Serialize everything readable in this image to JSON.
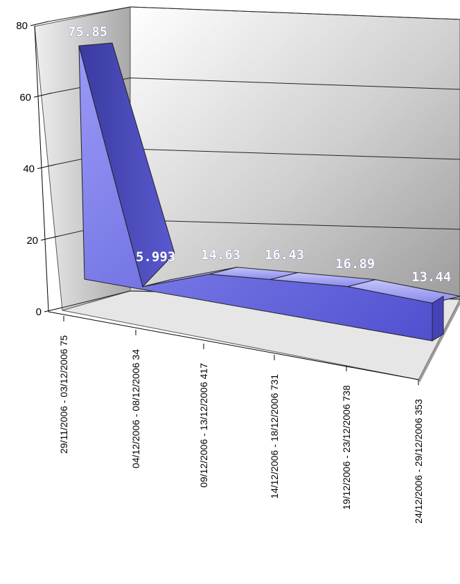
{
  "chart_data": {
    "type": "area",
    "three_d": true,
    "categories": [
      "29/11/2006 - 03/12/2006  75",
      "04/12/2006 - 08/12/2006  34",
      "09/12/2006 - 13/12/2006  417",
      "14/12/2006 - 18/12/2006  731",
      "19/12/2006 - 23/12/2006  738",
      "24/12/2006 - 29/12/2006  353"
    ],
    "values": [
      75.85,
      5.993,
      14.63,
      16.43,
      16.89,
      13.44
    ],
    "data_labels": [
      "75.85",
      "5.993",
      "14.63",
      "16.43",
      "16.89",
      "13.44"
    ],
    "ylim": [
      0,
      80
    ],
    "y_ticks": [
      "0",
      "20",
      "40",
      "60",
      "80"
    ],
    "grid": true,
    "legend": "none",
    "colors": {
      "series": "#7878f0",
      "series_dark": "#3c3ca4",
      "series_top": "#b0b0f8",
      "wall": "#cfcfcf",
      "floor": "#e4e4e4"
    }
  }
}
